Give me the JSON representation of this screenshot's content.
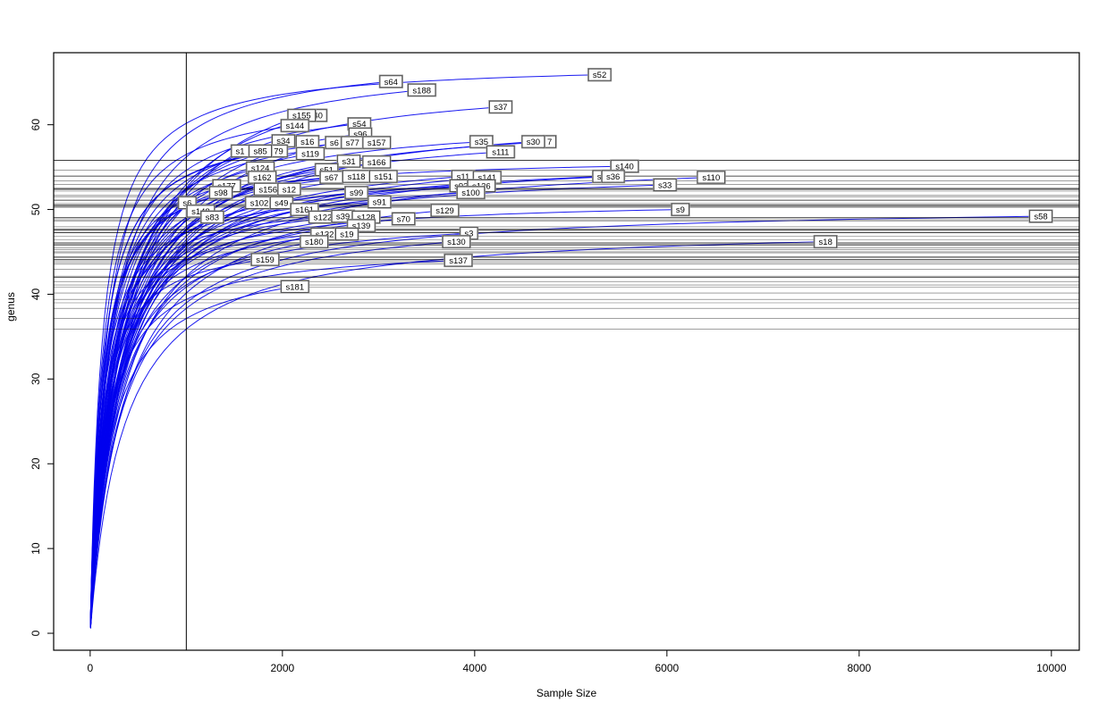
{
  "chart_data": {
    "type": "line",
    "subtype": "rarefaction-curves",
    "title": "",
    "xlabel": "Sample Size",
    "ylabel": "genus",
    "x_ticks": [
      0,
      2000,
      4000,
      6000,
      8000,
      10000
    ],
    "y_ticks": [
      0,
      10,
      20,
      30,
      40,
      50,
      60
    ],
    "x_range": [
      -380,
      10290
    ],
    "y_range": [
      -2,
      68.5
    ],
    "vline_sample_size": 1000,
    "curve_color": "#0000EE",
    "refline_color": "#000000",
    "label_box_fill": "#ffffff",
    "label_box_border": "#4d4d4d",
    "series": [
      {
        "label": "s52",
        "sample_size": 5300,
        "genus": 65.9
      },
      {
        "label": "s64",
        "sample_size": 3130,
        "genus": 65.1
      },
      {
        "label": "s188",
        "sample_size": 3450,
        "genus": 64.1
      },
      {
        "label": "s37",
        "sample_size": 4270,
        "genus": 62.1
      },
      {
        "label": "40",
        "sample_size": 2370,
        "genus": 61.1
      },
      {
        "label": "s155",
        "sample_size": 2200,
        "genus": 61.1
      },
      {
        "label": "s144",
        "sample_size": 2130,
        "genus": 59.9
      },
      {
        "label": "s54",
        "sample_size": 2800,
        "genus": 60.1
      },
      {
        "label": "s96",
        "sample_size": 2810,
        "genus": 58.9
      },
      {
        "label": "s34",
        "sample_size": 2010,
        "genus": 58.1
      },
      {
        "label": "s16",
        "sample_size": 2260,
        "genus": 58.0
      },
      {
        "label": "s6",
        "sample_size": 2540,
        "genus": 57.9
      },
      {
        "label": "s77",
        "sample_size": 2730,
        "genus": 57.9
      },
      {
        "label": "s157",
        "sample_size": 2980,
        "genus": 57.9
      },
      {
        "label": "s35",
        "sample_size": 4070,
        "genus": 58.0
      },
      {
        "label": "7",
        "sample_size": 4780,
        "genus": 58.0
      },
      {
        "label": "s30",
        "sample_size": 4610,
        "genus": 58.0
      },
      {
        "label": "s1",
        "sample_size": 1560,
        "genus": 56.9
      },
      {
        "label": "79",
        "sample_size": 1960,
        "genus": 56.9
      },
      {
        "label": "s85",
        "sample_size": 1770,
        "genus": 56.9
      },
      {
        "label": "s119",
        "sample_size": 2290,
        "genus": 56.6
      },
      {
        "label": "s111",
        "sample_size": 4270,
        "genus": 56.8
      },
      {
        "label": "s31",
        "sample_size": 2690,
        "genus": 55.7
      },
      {
        "label": "s166",
        "sample_size": 2980,
        "genus": 55.6
      },
      {
        "label": "s140",
        "sample_size": 5560,
        "genus": 55.1
      },
      {
        "label": "s124",
        "sample_size": 1770,
        "genus": 54.9
      },
      {
        "label": "s51",
        "sample_size": 2460,
        "genus": 54.7
      },
      {
        "label": "s1",
        "sample_size": 5320,
        "genus": 53.9
      },
      {
        "label": "s36",
        "sample_size": 5440,
        "genus": 53.9
      },
      {
        "label": "s162",
        "sample_size": 1790,
        "genus": 53.8
      },
      {
        "label": "s67",
        "sample_size": 2510,
        "genus": 53.8
      },
      {
        "label": "s118",
        "sample_size": 2770,
        "genus": 53.9
      },
      {
        "label": "s151",
        "sample_size": 3050,
        "genus": 53.9
      },
      {
        "label": "s11",
        "sample_size": 3880,
        "genus": 53.9
      },
      {
        "label": "s141",
        "sample_size": 4130,
        "genus": 53.8
      },
      {
        "label": "s110",
        "sample_size": 6460,
        "genus": 53.8
      },
      {
        "label": "s177",
        "sample_size": 1420,
        "genus": 52.8
      },
      {
        "label": "s92",
        "sample_size": 3860,
        "genus": 52.8
      },
      {
        "label": "s126",
        "sample_size": 4070,
        "genus": 52.8
      },
      {
        "label": "s33",
        "sample_size": 5980,
        "genus": 52.9
      },
      {
        "label": "s156",
        "sample_size": 1850,
        "genus": 52.4
      },
      {
        "label": "s12",
        "sample_size": 2070,
        "genus": 52.4
      },
      {
        "label": "s98",
        "sample_size": 1360,
        "genus": 52.0
      },
      {
        "label": "s99",
        "sample_size": 2770,
        "genus": 52.0
      },
      {
        "label": "s100",
        "sample_size": 3960,
        "genus": 52.0
      },
      {
        "label": "s6",
        "sample_size": 1010,
        "genus": 50.8
      },
      {
        "label": "s102",
        "sample_size": 1760,
        "genus": 50.8
      },
      {
        "label": "s49",
        "sample_size": 1990,
        "genus": 50.8
      },
      {
        "label": "s91",
        "sample_size": 3010,
        "genus": 50.9
      },
      {
        "label": "s9",
        "sample_size": 6140,
        "genus": 50.0
      },
      {
        "label": "s148",
        "sample_size": 1150,
        "genus": 49.8
      },
      {
        "label": "s161",
        "sample_size": 2230,
        "genus": 50.0
      },
      {
        "label": "s129",
        "sample_size": 3690,
        "genus": 49.9
      },
      {
        "label": "s83",
        "sample_size": 1270,
        "genus": 49.1
      },
      {
        "label": "s122",
        "sample_size": 2420,
        "genus": 49.1
      },
      {
        "label": "s39",
        "sample_size": 2630,
        "genus": 49.2
      },
      {
        "label": "s128",
        "sample_size": 2870,
        "genus": 49.1
      },
      {
        "label": "s70",
        "sample_size": 3260,
        "genus": 48.9
      },
      {
        "label": "s58",
        "sample_size": 9890,
        "genus": 49.2
      },
      {
        "label": "s139",
        "sample_size": 2820,
        "genus": 48.1
      },
      {
        "label": "s132",
        "sample_size": 2440,
        "genus": 47.1
      },
      {
        "label": "s19",
        "sample_size": 2670,
        "genus": 47.1
      },
      {
        "label": "s3",
        "sample_size": 3940,
        "genus": 47.2
      },
      {
        "label": "s180",
        "sample_size": 2330,
        "genus": 46.2
      },
      {
        "label": "s130",
        "sample_size": 3810,
        "genus": 46.2
      },
      {
        "label": "s18",
        "sample_size": 7650,
        "genus": 46.2
      },
      {
        "label": "s159",
        "sample_size": 1820,
        "genus": 44.1
      },
      {
        "label": "s137",
        "sample_size": 3830,
        "genus": 44.0
      },
      {
        "label": "s181",
        "sample_size": 2130,
        "genus": 40.9
      }
    ]
  }
}
